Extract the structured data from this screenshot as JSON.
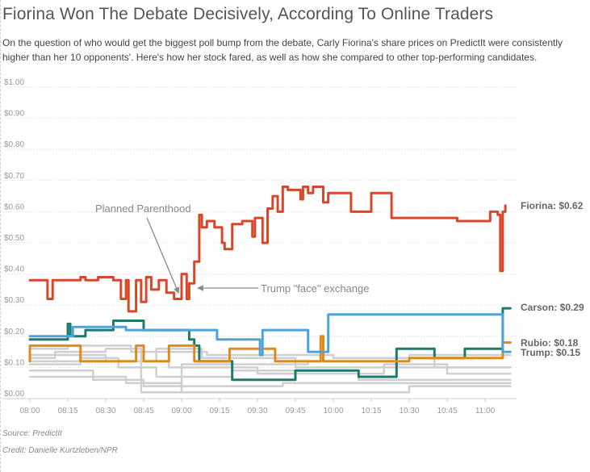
{
  "title": "Fiorina Won The Debate Decisively, According To Online Traders",
  "subtitle": "On the question of who would get the biggest poll bump from the debate, Carly Fiorina's share prices on PredictIt were consistently higher than her 10 opponents'. Here's how her stock fared, as well as how she compared to other top-performing candidates.",
  "source": "Source: PredictIt",
  "credit": "Credit: Danielle Kurtzleben/NPR",
  "chart_data": {
    "type": "line",
    "x_ticks": [
      "08:00",
      "08:15",
      "08:30",
      "08:45",
      "09:00",
      "09:15",
      "09:30",
      "09:45",
      "10:00",
      "10:15",
      "10:30",
      "10:45",
      "11:00"
    ],
    "y_ticks": [
      "$0.00",
      "$0.10",
      "$0.20",
      "$0.30",
      "$0.40",
      "$0.50",
      "$0.60",
      "$0.70",
      "$0.80",
      "$0.90",
      "$1.00"
    ],
    "xlim": [
      "08:00",
      "11:08"
    ],
    "ylim": [
      0,
      1
    ],
    "grid": "horizontal dotted",
    "annotations": [
      {
        "text": "Planned Parenthood",
        "x": "09:00",
        "y": 0.33
      },
      {
        "text": "Trump \"face\" exchange",
        "x": "09:05",
        "y": 0.36
      }
    ],
    "series": [
      {
        "name": "Fiorina",
        "end_label": "Fiorina: $0.62",
        "color": "#d9472b",
        "points": [
          [
            "08:00",
            0.38
          ],
          [
            "08:07",
            0.38
          ],
          [
            "08:07",
            0.32
          ],
          [
            "08:09",
            0.32
          ],
          [
            "08:09",
            0.38
          ],
          [
            "08:20",
            0.38
          ],
          [
            "08:20",
            0.39
          ],
          [
            "08:22",
            0.39
          ],
          [
            "08:22",
            0.38
          ],
          [
            "08:27",
            0.38
          ],
          [
            "08:27",
            0.39
          ],
          [
            "08:33",
            0.39
          ],
          [
            "08:33",
            0.38
          ],
          [
            "08:36",
            0.38
          ],
          [
            "08:36",
            0.32
          ],
          [
            "08:38",
            0.32
          ],
          [
            "08:38",
            0.38
          ],
          [
            "08:39",
            0.38
          ],
          [
            "08:39",
            0.28
          ],
          [
            "08:42",
            0.28
          ],
          [
            "08:42",
            0.38
          ],
          [
            "08:44",
            0.38
          ],
          [
            "08:44",
            0.31
          ],
          [
            "08:46",
            0.31
          ],
          [
            "08:46",
            0.39
          ],
          [
            "08:48",
            0.39
          ],
          [
            "08:48",
            0.35
          ],
          [
            "08:51",
            0.35
          ],
          [
            "08:51",
            0.38
          ],
          [
            "08:54",
            0.38
          ],
          [
            "08:54",
            0.34
          ],
          [
            "08:57",
            0.34
          ],
          [
            "08:57",
            0.32
          ],
          [
            "09:00",
            0.32
          ],
          [
            "09:00",
            0.4
          ],
          [
            "09:02",
            0.4
          ],
          [
            "09:02",
            0.32
          ],
          [
            "09:03",
            0.32
          ],
          [
            "09:03",
            0.37
          ],
          [
            "09:05",
            0.37
          ],
          [
            "09:05",
            0.44
          ],
          [
            "09:07",
            0.44
          ],
          [
            "09:07",
            0.59
          ],
          [
            "09:08",
            0.59
          ],
          [
            "09:08",
            0.55
          ],
          [
            "09:10",
            0.55
          ],
          [
            "09:10",
            0.57
          ],
          [
            "09:13",
            0.57
          ],
          [
            "09:13",
            0.55
          ],
          [
            "09:16",
            0.55
          ],
          [
            "09:16",
            0.5
          ],
          [
            "09:17",
            0.5
          ],
          [
            "09:17",
            0.48
          ],
          [
            "09:20",
            0.48
          ],
          [
            "09:20",
            0.56
          ],
          [
            "09:24",
            0.56
          ],
          [
            "09:24",
            0.57
          ],
          [
            "09:28",
            0.57
          ],
          [
            "09:28",
            0.52
          ],
          [
            "09:29",
            0.52
          ],
          [
            "09:29",
            0.58
          ],
          [
            "09:32",
            0.58
          ],
          [
            "09:32",
            0.5
          ],
          [
            "09:34",
            0.5
          ],
          [
            "09:34",
            0.61
          ],
          [
            "09:36",
            0.61
          ],
          [
            "09:36",
            0.65
          ],
          [
            "09:38",
            0.65
          ],
          [
            "09:38",
            0.6
          ],
          [
            "09:40",
            0.6
          ],
          [
            "09:40",
            0.68
          ],
          [
            "09:42",
            0.68
          ],
          [
            "09:42",
            0.67
          ],
          [
            "09:47",
            0.67
          ],
          [
            "09:47",
            0.64
          ],
          [
            "09:48",
            0.64
          ],
          [
            "09:48",
            0.68
          ],
          [
            "09:50",
            0.68
          ],
          [
            "09:50",
            0.66
          ],
          [
            "09:52",
            0.66
          ],
          [
            "09:52",
            0.68
          ],
          [
            "09:56",
            0.68
          ],
          [
            "09:56",
            0.63
          ],
          [
            "09:58",
            0.63
          ],
          [
            "09:58",
            0.66
          ],
          [
            "10:07",
            0.66
          ],
          [
            "10:07",
            0.6
          ],
          [
            "10:15",
            0.6
          ],
          [
            "10:15",
            0.66
          ],
          [
            "10:23",
            0.66
          ],
          [
            "10:23",
            0.58
          ],
          [
            "10:49",
            0.58
          ],
          [
            "10:49",
            0.57
          ],
          [
            "11:02",
            0.57
          ],
          [
            "11:02",
            0.6
          ],
          [
            "11:05",
            0.6
          ],
          [
            "11:05",
            0.59
          ],
          [
            "11:06",
            0.59
          ],
          [
            "11:06",
            0.41
          ],
          [
            "11:07",
            0.41
          ],
          [
            "11:07",
            0.6
          ],
          [
            "11:08",
            0.6
          ],
          [
            "11:08",
            0.62
          ]
        ]
      },
      {
        "name": "Carson",
        "end_label": "Carson: $0.29",
        "color": "#1f7a6e",
        "points": [
          [
            "08:00",
            0.19
          ],
          [
            "08:15",
            0.19
          ],
          [
            "08:15",
            0.24
          ],
          [
            "08:16",
            0.24
          ],
          [
            "08:16",
            0.2
          ],
          [
            "08:22",
            0.2
          ],
          [
            "08:22",
            0.22
          ],
          [
            "08:33",
            0.22
          ],
          [
            "08:33",
            0.25
          ],
          [
            "08:45",
            0.25
          ],
          [
            "08:45",
            0.22
          ],
          [
            "09:03",
            0.22
          ],
          [
            "09:03",
            0.19
          ],
          [
            "09:05",
            0.19
          ],
          [
            "09:05",
            0.17
          ],
          [
            "09:07",
            0.17
          ],
          [
            "09:07",
            0.12
          ],
          [
            "09:20",
            0.12
          ],
          [
            "09:20",
            0.06
          ],
          [
            "09:45",
            0.06
          ],
          [
            "09:45",
            0.09
          ],
          [
            "10:10",
            0.09
          ],
          [
            "10:10",
            0.07
          ],
          [
            "10:25",
            0.07
          ],
          [
            "10:25",
            0.16
          ],
          [
            "10:40",
            0.16
          ],
          [
            "10:40",
            0.13
          ],
          [
            "10:52",
            0.13
          ],
          [
            "10:52",
            0.16
          ],
          [
            "11:07",
            0.16
          ],
          [
            "11:07",
            0.29
          ],
          [
            "11:10",
            0.29
          ]
        ]
      },
      {
        "name": "Rubio",
        "end_label": "Rubio: $0.18",
        "color": "#e08a1e",
        "points": [
          [
            "08:00",
            0.12
          ],
          [
            "08:00",
            0.17
          ],
          [
            "08:20",
            0.17
          ],
          [
            "08:20",
            0.12
          ],
          [
            "08:42",
            0.12
          ],
          [
            "08:42",
            0.17
          ],
          [
            "08:45",
            0.17
          ],
          [
            "08:45",
            0.12
          ],
          [
            "08:55",
            0.12
          ],
          [
            "08:55",
            0.17
          ],
          [
            "09:05",
            0.17
          ],
          [
            "09:05",
            0.12
          ],
          [
            "09:19",
            0.12
          ],
          [
            "09:19",
            0.16
          ],
          [
            "09:37",
            0.16
          ],
          [
            "09:37",
            0.12
          ],
          [
            "09:55",
            0.12
          ],
          [
            "09:55",
            0.2
          ],
          [
            "09:56",
            0.2
          ],
          [
            "09:56",
            0.12
          ],
          [
            "10:30",
            0.12
          ],
          [
            "10:30",
            0.13
          ],
          [
            "11:07",
            0.13
          ],
          [
            "11:07",
            0.18
          ],
          [
            "11:10",
            0.18
          ]
        ]
      },
      {
        "name": "Trump",
        "end_label": "Trump: $0.15",
        "color": "#4ea4d8",
        "points": [
          [
            "08:00",
            0.2
          ],
          [
            "08:17",
            0.2
          ],
          [
            "08:17",
            0.23
          ],
          [
            "08:38",
            0.23
          ],
          [
            "08:38",
            0.22
          ],
          [
            "09:14",
            0.22
          ],
          [
            "09:14",
            0.19
          ],
          [
            "09:31",
            0.19
          ],
          [
            "09:31",
            0.14
          ],
          [
            "09:32",
            0.14
          ],
          [
            "09:32",
            0.22
          ],
          [
            "09:50",
            0.22
          ],
          [
            "09:50",
            0.15
          ],
          [
            "09:58",
            0.15
          ],
          [
            "09:58",
            0.27
          ],
          [
            "11:07",
            0.27
          ],
          [
            "11:07",
            0.15
          ],
          [
            "11:10",
            0.15
          ]
        ]
      },
      {
        "name": "",
        "color": "#cfcfcf",
        "points": [
          [
            "08:00",
            0.16
          ],
          [
            "08:15",
            0.16
          ],
          [
            "08:15",
            0.17
          ],
          [
            "08:40",
            0.17
          ],
          [
            "08:40",
            0.15
          ],
          [
            "09:10",
            0.15
          ],
          [
            "09:10",
            0.14
          ],
          [
            "10:00",
            0.14
          ],
          [
            "10:00",
            0.13
          ],
          [
            "10:40",
            0.13
          ],
          [
            "10:40",
            0.1
          ],
          [
            "11:10",
            0.1
          ]
        ]
      },
      {
        "name": "",
        "color": "#cfcfcf",
        "points": [
          [
            "08:00",
            0.14
          ],
          [
            "08:30",
            0.14
          ],
          [
            "08:30",
            0.12
          ],
          [
            "08:55",
            0.12
          ],
          [
            "08:55",
            0.1
          ],
          [
            "09:30",
            0.1
          ],
          [
            "09:30",
            0.08
          ],
          [
            "10:20",
            0.08
          ],
          [
            "10:20",
            0.11
          ],
          [
            "10:45",
            0.11
          ],
          [
            "10:45",
            0.08
          ],
          [
            "11:10",
            0.08
          ]
        ]
      },
      {
        "name": "",
        "color": "#cfcfcf",
        "points": [
          [
            "08:00",
            0.11
          ],
          [
            "08:20",
            0.11
          ],
          [
            "08:20",
            0.13
          ],
          [
            "08:35",
            0.13
          ],
          [
            "08:35",
            0.1
          ],
          [
            "08:50",
            0.1
          ],
          [
            "08:50",
            0.07
          ],
          [
            "09:20",
            0.07
          ],
          [
            "09:20",
            0.09
          ],
          [
            "10:10",
            0.09
          ],
          [
            "10:10",
            0.06
          ],
          [
            "11:10",
            0.06
          ]
        ]
      },
      {
        "name": "",
        "color": "#cfcfcf",
        "points": [
          [
            "08:00",
            0.09
          ],
          [
            "08:25",
            0.09
          ],
          [
            "08:25",
            0.06
          ],
          [
            "08:45",
            0.06
          ],
          [
            "08:45",
            0.04
          ],
          [
            "09:40",
            0.04
          ],
          [
            "09:40",
            0.05
          ],
          [
            "11:10",
            0.05
          ]
        ]
      },
      {
        "name": "",
        "color": "#cfcfcf",
        "points": [
          [
            "08:00",
            0.07
          ],
          [
            "08:38",
            0.07
          ],
          [
            "08:38",
            0.05
          ],
          [
            "09:00",
            0.05
          ],
          [
            "09:00",
            0.02
          ],
          [
            "10:30",
            0.02
          ],
          [
            "10:30",
            0.04
          ],
          [
            "11:10",
            0.04
          ]
        ]
      },
      {
        "name": "",
        "color": "#cfcfcf",
        "points": [
          [
            "08:00",
            0.13
          ],
          [
            "08:10",
            0.13
          ],
          [
            "08:10",
            0.15
          ],
          [
            "08:30",
            0.15
          ],
          [
            "08:30",
            0.16
          ],
          [
            "08:44",
            0.16
          ],
          [
            "08:44",
            0.02
          ],
          [
            "09:00",
            0.02
          ],
          [
            "09:00",
            0.11
          ],
          [
            "09:50",
            0.11
          ],
          [
            "09:50",
            0.12
          ],
          [
            "10:30",
            0.12
          ],
          [
            "10:30",
            0.14
          ],
          [
            "11:10",
            0.14
          ]
        ]
      },
      {
        "name": "",
        "color": "#cfcfcf",
        "points": [
          [
            "08:00",
            0.12
          ],
          [
            "08:50",
            0.12
          ],
          [
            "08:50",
            0.16
          ],
          [
            "09:08",
            0.16
          ],
          [
            "09:08",
            0.13
          ],
          [
            "09:45",
            0.13
          ],
          [
            "09:45",
            0.1
          ],
          [
            "11:10",
            0.1
          ]
        ]
      }
    ]
  }
}
